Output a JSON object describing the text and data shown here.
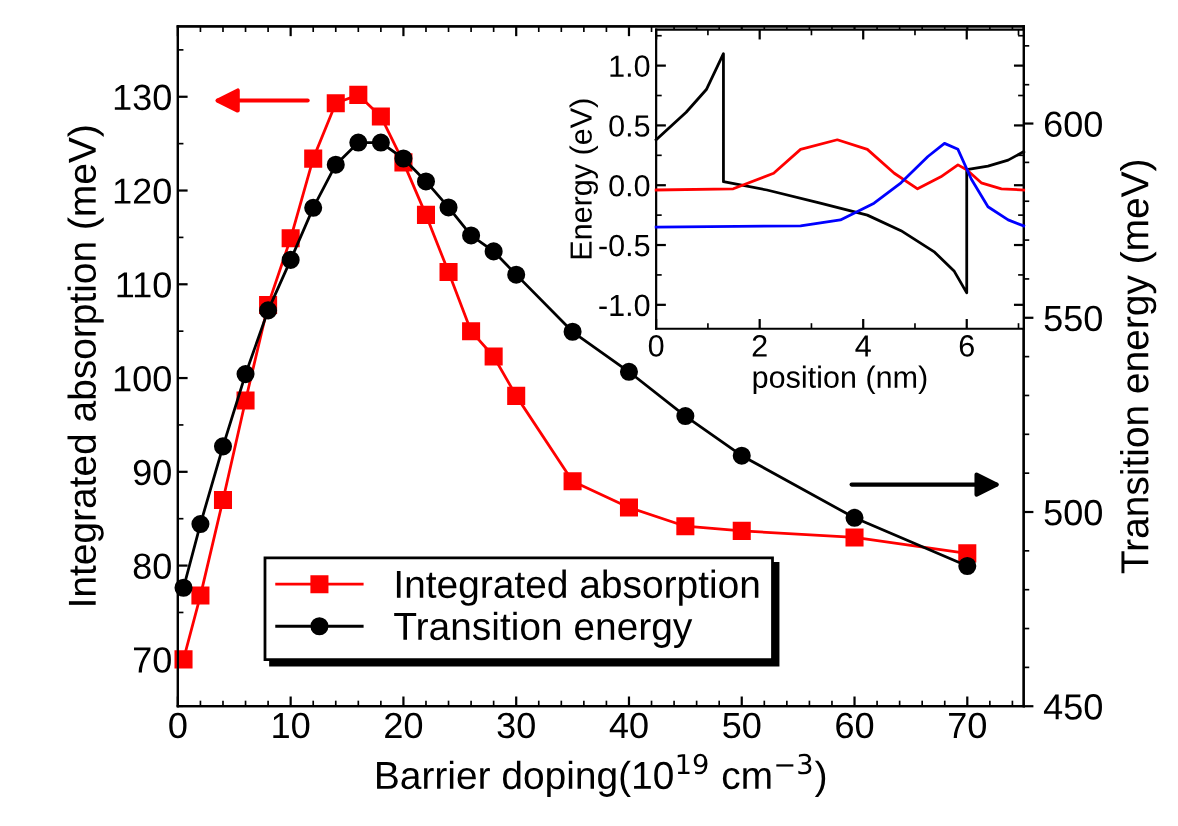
{
  "chart_data": [
    {
      "type": "line",
      "xlabel": "Barrier doping(10$^{19}$ cm$^{−3}$)",
      "ylabel": "Integrated absorption (meV)",
      "y2label": "Transition energy (meV)",
      "xlim": [
        0,
        75
      ],
      "xticks": [
        0,
        10,
        20,
        30,
        40,
        50,
        60,
        70
      ],
      "ylim": [
        65,
        137.5
      ],
      "yticks": [
        70,
        80,
        90,
        100,
        110,
        120,
        130
      ],
      "y2lim": [
        450,
        625
      ],
      "y2ticks": [
        450,
        500,
        550,
        600
      ],
      "legend": "bottom left",
      "grid": false,
      "line_style": "solid",
      "series": [
        {
          "name": "Integrated absorption",
          "color": "#ff0000",
          "marker": "square",
          "x": [
            0.5,
            2,
            4,
            6,
            8,
            10,
            12,
            14,
            16,
            18,
            20,
            22,
            24,
            26,
            28,
            30,
            35,
            40,
            45,
            50,
            60,
            70
          ],
          "values": [
            70.0,
            76.8,
            87.0,
            97.6,
            107.8,
            114.9,
            123.4,
            129.3,
            130.2,
            127.9,
            123.0,
            117.4,
            111.3,
            105.0,
            102.3,
            98.1,
            89.0,
            86.2,
            84.2,
            83.7,
            83.0,
            81.3
          ]
        },
        {
          "name": "Transition energy",
          "color": "#000000",
          "marker": "circle",
          "axis": "y2",
          "x": [
            0.5,
            2,
            4,
            6,
            8,
            10,
            12,
            14,
            16,
            18,
            20,
            22,
            24,
            26,
            28,
            30,
            35,
            40,
            45,
            50,
            60,
            70
          ],
          "values": [
            480.5,
            496.9,
            516.9,
            535.5,
            551.9,
            564.9,
            578.3,
            589.4,
            595.1,
            595.1,
            591.0,
            585.1,
            578.4,
            571.2,
            567.1,
            561.1,
            546.4,
            536.1,
            524.7,
            514.5,
            498.5,
            486.1
          ]
        }
      ]
    },
    {
      "type": "line",
      "xlabel": "position (nm)",
      "ylabel": "Energy (eV)",
      "xlim": [
        0,
        7.1
      ],
      "xticks": [
        0,
        2,
        4,
        6
      ],
      "ylim": [
        -1.2,
        1.3
      ],
      "yticks": [
        {
          "value": -1.0,
          "label": "-1.0"
        },
        {
          "value": -0.5,
          "label": "-0.5"
        },
        {
          "value": 0.0,
          "label": "0.0"
        },
        {
          "value": 0.5,
          "label": "0.5"
        },
        {
          "value": 1.0,
          "label": "1.0"
        }
      ],
      "legend": false,
      "grid": false,
      "line_style": "solid",
      "series": [
        {
          "color": "#000000",
          "x": [
            0,
            0.58,
            0.97,
            1.3,
            1.3,
            2.14,
            3.17,
            4.08,
            4.73,
            5.38,
            5.76,
            6.0,
            6.0,
            6.41,
            6.8,
            7.1
          ],
          "values": [
            0.38,
            0.61,
            0.8,
            1.1,
            0.03,
            -0.04,
            -0.15,
            -0.25,
            -0.38,
            -0.56,
            -0.72,
            -0.9,
            0.13,
            0.16,
            0.21,
            0.28
          ]
        },
        {
          "color": "#ff0000",
          "x": [
            0,
            1.49,
            2.27,
            2.79,
            3.5,
            4.08,
            4.6,
            5.05,
            5.5,
            5.83,
            6.0,
            6.28,
            6.67,
            7.1
          ],
          "values": [
            -0.04,
            -0.03,
            0.1,
            0.3,
            0.38,
            0.3,
            0.1,
            -0.03,
            0.07,
            0.17,
            0.13,
            0.02,
            -0.03,
            -0.04
          ]
        },
        {
          "color": "#0000ff",
          "x": [
            0,
            2.79,
            3.56,
            4.21,
            4.73,
            5.25,
            5.57,
            5.83,
            6.09,
            6.41,
            6.8,
            7.1
          ],
          "values": [
            -0.35,
            -0.34,
            -0.29,
            -0.15,
            0.02,
            0.24,
            0.35,
            0.3,
            0.05,
            -0.18,
            -0.29,
            -0.34
          ]
        }
      ]
    }
  ]
}
